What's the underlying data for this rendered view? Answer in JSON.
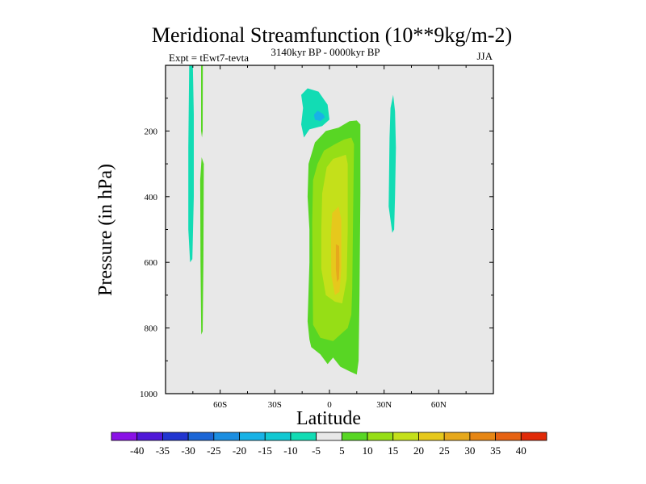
{
  "chart_data": {
    "type": "contour",
    "title": "Meridional Streamfunction (10**9kg/m-2)",
    "left_label": "Expt = tEwt7-tevta",
    "center_label": "3140kyr BP - 0000kyr BP",
    "right_label": "JJA",
    "xlabel": "Latitude",
    "ylabel": "Pressure (in hPa)",
    "xlim": [
      -90,
      90
    ],
    "ylim": [
      1000,
      0
    ],
    "x_ticks": [
      {
        "value": -60,
        "label": "60S"
      },
      {
        "value": -30,
        "label": "30S"
      },
      {
        "value": 0,
        "label": "0"
      },
      {
        "value": 30,
        "label": "30N"
      },
      {
        "value": 60,
        "label": "60N"
      }
    ],
    "y_ticks": [
      {
        "value": 200,
        "label": "200"
      },
      {
        "value": 400,
        "label": "400"
      },
      {
        "value": 600,
        "label": "600"
      },
      {
        "value": 800,
        "label": "800"
      },
      {
        "value": 1000,
        "label": "1000"
      }
    ],
    "colorbar": {
      "labels": [
        "-40",
        "-35",
        "-30",
        "-25",
        "-20",
        "-15",
        "-10",
        "-5",
        "5",
        "10",
        "15",
        "20",
        "25",
        "30",
        "35",
        "40"
      ],
      "colors": [
        "#8a12e6",
        "#5018d8",
        "#2236d0",
        "#1c66d6",
        "#1c8ee0",
        "#18b2e6",
        "#12c8d2",
        "#12dcb4",
        "#e8e8e8",
        "#58d624",
        "#96de16",
        "#c4e01a",
        "#e6c81c",
        "#e6a81c",
        "#e68614",
        "#e66212",
        "#e02a08"
      ]
    },
    "background_color": "#e8e8e8",
    "regions": [
      {
        "name": "negative-band-far-south",
        "level": "-10 to -5",
        "color": "#12dcb4",
        "points": [
          [
            -77,
            0
          ],
          [
            -75,
            0
          ],
          [
            -74.5,
            150
          ],
          [
            -74.5,
            400
          ],
          [
            -75.3,
            590
          ],
          [
            -76.5,
            600
          ],
          [
            -77.5,
            500
          ],
          [
            -77.5,
            250
          ]
        ]
      },
      {
        "name": "positive-thin-line-south",
        "level": "5 to 10",
        "color": "#58d624",
        "points": [
          [
            -70.5,
            0
          ],
          [
            -69.5,
            0
          ],
          [
            -69.6,
            200
          ],
          [
            -70,
            220
          ],
          [
            -70.5,
            200
          ]
        ]
      },
      {
        "name": "positive-band-south",
        "level": "5 to 10",
        "color": "#58d624",
        "points": [
          [
            -70.2,
            280
          ],
          [
            -69,
            300
          ],
          [
            -69.2,
            600
          ],
          [
            -69.6,
            810
          ],
          [
            -70.4,
            820
          ],
          [
            -70.8,
            600
          ],
          [
            -71,
            350
          ]
        ]
      },
      {
        "name": "negative-cell-upper-tropics",
        "level": "-10 to -5",
        "color": "#12dcb4",
        "points": [
          [
            -15.5,
            90
          ],
          [
            -12,
            70
          ],
          [
            -6,
            80
          ],
          [
            -1,
            120
          ],
          [
            0,
            165
          ],
          [
            -4,
            185
          ],
          [
            -11,
            195
          ],
          [
            -14,
            220
          ],
          [
            -15.5,
            180
          ],
          [
            -14.5,
            130
          ]
        ]
      },
      {
        "name": "negative-cell-upper-core",
        "level": "-15 to -10",
        "color": "#18b2e6",
        "points": [
          [
            -8.5,
            150
          ],
          [
            -6.5,
            138
          ],
          [
            -3.5,
            148
          ],
          [
            -2.5,
            158
          ],
          [
            -5,
            170
          ],
          [
            -8,
            165
          ]
        ]
      },
      {
        "name": "positive-cell-outer",
        "level": "5 to 10",
        "color": "#58d624",
        "points": [
          [
            -8,
            235
          ],
          [
            -2,
            200
          ],
          [
            5,
            190
          ],
          [
            11,
            170
          ],
          [
            15,
            168
          ],
          [
            17,
            180
          ],
          [
            17,
            390
          ],
          [
            16.5,
            700
          ],
          [
            16,
            900
          ],
          [
            15,
            942
          ],
          [
            11,
            932
          ],
          [
            6,
            918
          ],
          [
            2,
            890
          ],
          [
            -1,
            910
          ],
          [
            -5,
            880
          ],
          [
            -10,
            858
          ],
          [
            -11,
            835
          ],
          [
            -12,
            780
          ],
          [
            -11,
            600
          ],
          [
            -11,
            500
          ],
          [
            -12,
            400
          ],
          [
            -11.5,
            300
          ]
        ]
      },
      {
        "name": "positive-cell-middle",
        "level": "10 to 15",
        "color": "#96de16",
        "points": [
          [
            -6.5,
            300
          ],
          [
            -3,
            260
          ],
          [
            3,
            240
          ],
          [
            8,
            226
          ],
          [
            12,
            220
          ],
          [
            13.5,
            240
          ],
          [
            13,
            450
          ],
          [
            12.5,
            680
          ],
          [
            12,
            760
          ],
          [
            10,
            800
          ],
          [
            6,
            820
          ],
          [
            2,
            840
          ],
          [
            -5,
            830
          ],
          [
            -9,
            790
          ],
          [
            -9.3,
            600
          ],
          [
            -9.5,
            480
          ],
          [
            -9,
            350
          ]
        ]
      },
      {
        "name": "positive-cell-inner",
        "level": "15 to 20",
        "color": "#c4e01a",
        "points": [
          [
            -1.5,
            310
          ],
          [
            2,
            285
          ],
          [
            6,
            278
          ],
          [
            9,
            272
          ],
          [
            10,
            300
          ],
          [
            10,
            500
          ],
          [
            9.5,
            650
          ],
          [
            7,
            725
          ],
          [
            3,
            720
          ],
          [
            -2,
            700
          ],
          [
            -4.5,
            620
          ],
          [
            -4.5,
            500
          ],
          [
            -4,
            390
          ]
        ]
      },
      {
        "name": "positive-cell-core",
        "level": "20 to 25",
        "color": "#e6c81c",
        "points": [
          [
            1.5,
            450
          ],
          [
            5,
            430
          ],
          [
            6.5,
            470
          ],
          [
            6.5,
            620
          ],
          [
            5.5,
            690
          ],
          [
            3,
            700
          ],
          [
            1,
            640
          ],
          [
            0.8,
            520
          ]
        ]
      },
      {
        "name": "positive-cell-max",
        "level": "25 to 30",
        "color": "#e6a81c",
        "points": [
          [
            3.5,
            545
          ],
          [
            5.3,
            550
          ],
          [
            5.5,
            610
          ],
          [
            5.2,
            650
          ],
          [
            4.2,
            660
          ],
          [
            3.5,
            620
          ]
        ]
      },
      {
        "name": "negative-band-north",
        "level": "-10 to -5",
        "color": "#12dcb4",
        "points": [
          [
            35,
            90
          ],
          [
            36,
            140
          ],
          [
            36.5,
            250
          ],
          [
            36,
            400
          ],
          [
            35.5,
            500
          ],
          [
            34.5,
            510
          ],
          [
            32.5,
            430
          ],
          [
            33,
            220
          ],
          [
            33.5,
            130
          ]
        ]
      }
    ]
  }
}
